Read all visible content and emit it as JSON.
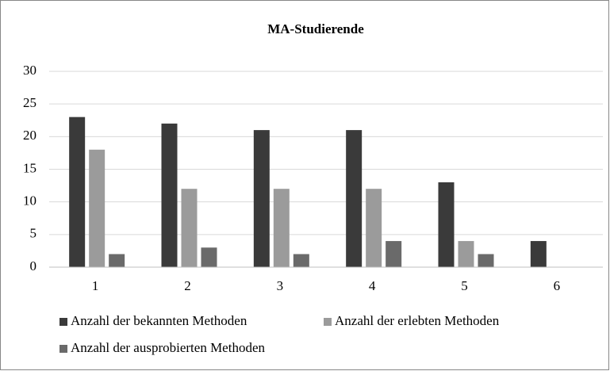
{
  "chart_data": {
    "type": "bar",
    "title": "MA-Studierende",
    "categories": [
      "1",
      "2",
      "3",
      "4",
      "5",
      "6"
    ],
    "series": [
      {
        "name": "Anzahl der bekannten Methoden",
        "color": "#3a3a3a",
        "values": [
          23,
          22,
          21,
          21,
          13,
          4
        ]
      },
      {
        "name": "Anzahl der erlebten Methoden",
        "color": "#9b9b9b",
        "values": [
          18,
          12,
          12,
          12,
          4,
          0
        ]
      },
      {
        "name": "Anzahl der ausprobierten Methoden",
        "color": "#6a6a6a",
        "values": [
          2,
          3,
          2,
          4,
          2,
          0
        ]
      }
    ],
    "ylim": [
      0,
      30
    ],
    "yticks": [
      0,
      5,
      10,
      15,
      20,
      25,
      30
    ],
    "grid": true,
    "legend": "bottom"
  }
}
